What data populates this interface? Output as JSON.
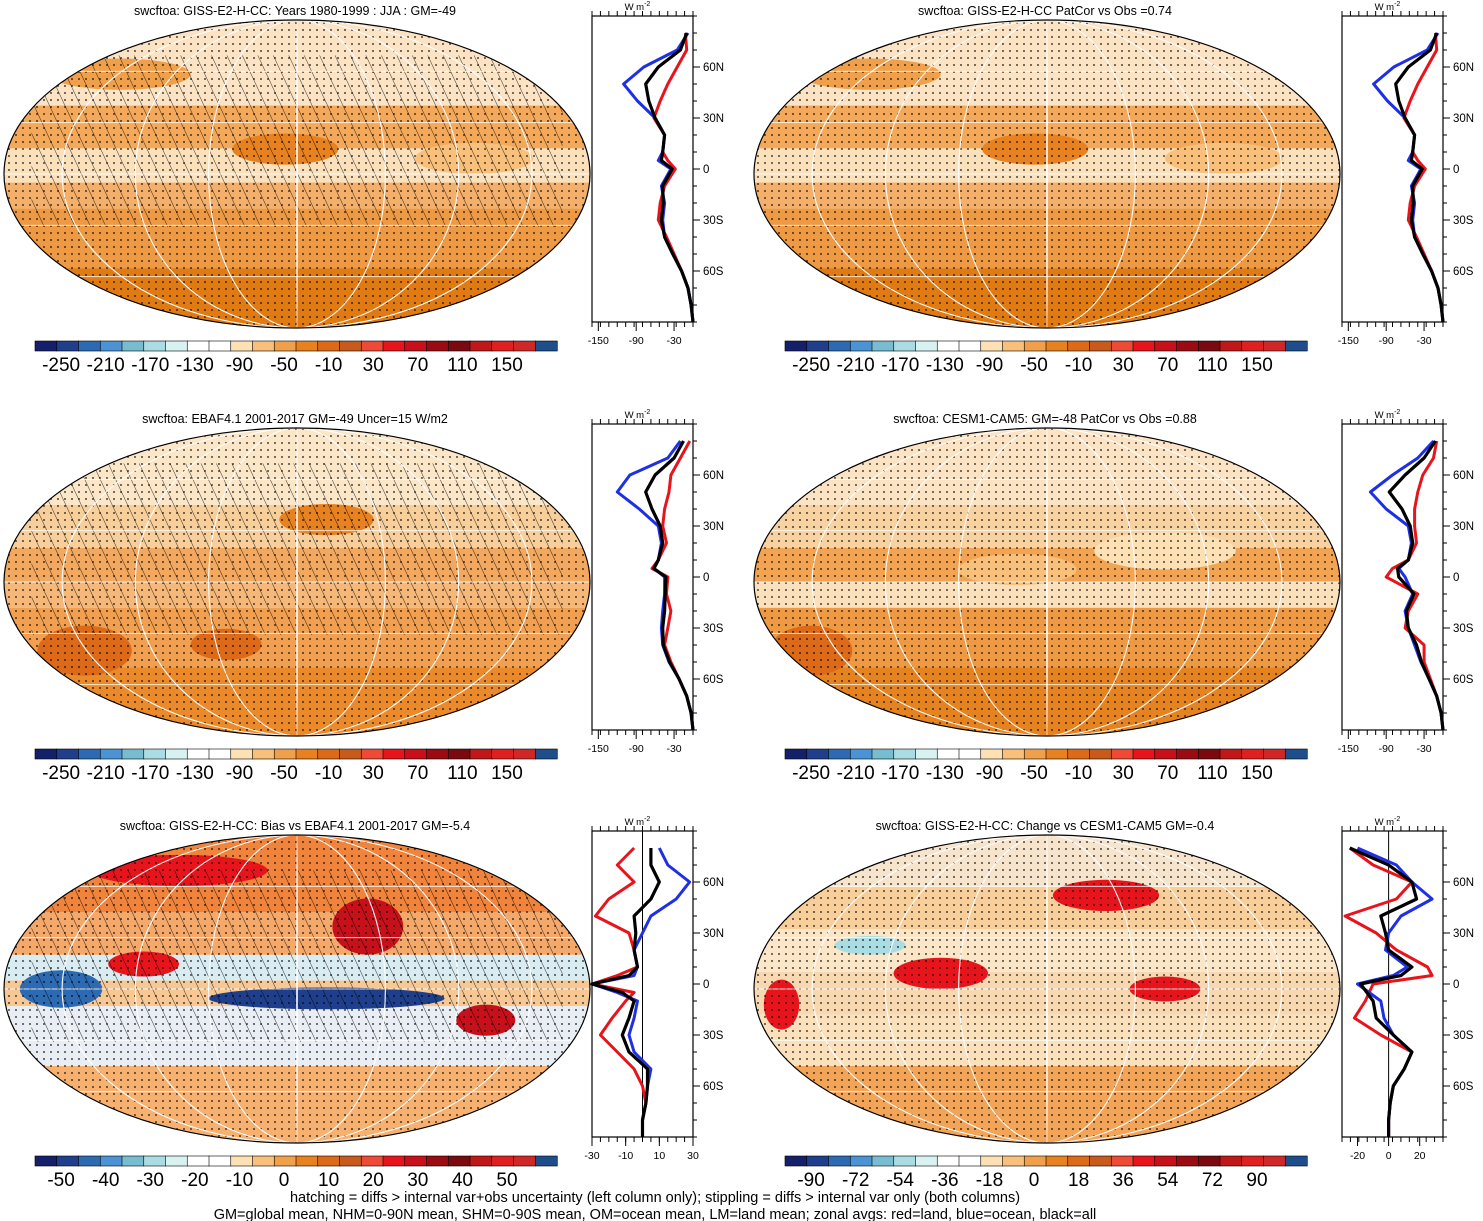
{
  "figure": {
    "footnotes": [
      "hatching = diffs > internal var+obs uncertainty (left column only); stippling = diffs > internal var only (both columns)",
      "GM=global mean, NHM=0-90N mean, SHM=0-90S mean, OM=ocean mean, LM=land mean; zonal avgs: red=land, blue=ocean, black=all"
    ]
  },
  "colors": {
    "land_line": "#e8141c",
    "ocean_line": "#1f2fe6",
    "all_line": "#000000"
  },
  "colorbars": {
    "abs": {
      "labels": [
        "-250",
        "-210",
        "-170",
        "-130",
        "-90",
        "-50",
        "-10",
        "30",
        "70",
        "110",
        "150"
      ],
      "colors": [
        "#15206b",
        "#1f3f8c",
        "#2c6ab3",
        "#4a93d4",
        "#78bcd0",
        "#a9dce3",
        "#d8f2f2",
        "#ffffff",
        "#ffffff",
        "#fde0b4",
        "#f8c07a",
        "#f0a04a",
        "#e8811f",
        "#dc6a18",
        "#c85a1c",
        "#ee4a36",
        "#e8141c",
        "#c8101a",
        "#9a0c12",
        "#7a0a10",
        "#c01818",
        "#e02020",
        "#d02828",
        "#1e4d8c"
      ]
    },
    "bias": {
      "labels": [
        "-50",
        "-40",
        "-30",
        "-20",
        "-10",
        "0",
        "10",
        "20",
        "30",
        "40",
        "50"
      ],
      "colors": [
        "#15206b",
        "#1f3f8c",
        "#2c6ab3",
        "#4a93d4",
        "#78bcd0",
        "#a9dce3",
        "#d8f2f2",
        "#ffffff",
        "#ffffff",
        "#fde0b4",
        "#f8c07a",
        "#f0a04a",
        "#e8811f",
        "#dc6a18",
        "#c85a1c",
        "#ee4a36",
        "#e8141c",
        "#c8101a",
        "#9a0c12",
        "#7a0a10",
        "#c01818",
        "#e02020",
        "#d02828",
        "#1e4d8c"
      ]
    },
    "change": {
      "labels": [
        "-90",
        "-72",
        "-54",
        "-36",
        "-18",
        "0",
        "18",
        "36",
        "54",
        "72",
        "90"
      ],
      "colors": [
        "#15206b",
        "#1f3f8c",
        "#2c6ab3",
        "#4a93d4",
        "#78bcd0",
        "#a9dce3",
        "#d8f2f2",
        "#ffffff",
        "#ffffff",
        "#fde0b4",
        "#f8c07a",
        "#f0a04a",
        "#e8811f",
        "#dc6a18",
        "#c85a1c",
        "#ee4a36",
        "#e8141c",
        "#c8101a",
        "#9a0c12",
        "#7a0a10",
        "#c01818",
        "#e02020",
        "#d02828",
        "#1e4d8c"
      ]
    }
  },
  "chart_data": [
    {
      "type": "heatmap",
      "title": "swcftoa: GISS-E2-H-CC: Years 1980-1999 : JJA : GM=-49",
      "colorbar": "abs",
      "map_style": "model",
      "hatched": true,
      "zonal": {
        "unit": "W m",
        "unit_sup": "-2",
        "xticks": [
          "-150",
          "-90",
          "-30"
        ],
        "xrange": [
          -160,
          0
        ],
        "yticks": [
          "60N",
          "30N",
          "0",
          "30S",
          "60S"
        ],
        "yrange": [
          -90,
          90
        ],
        "lat": [
          -90,
          -80,
          -70,
          -60,
          -50,
          -40,
          -30,
          -20,
          -10,
          0,
          5,
          10,
          20,
          30,
          40,
          50,
          60,
          70,
          80
        ],
        "land": [
          0,
          -3,
          -8,
          -18,
          -30,
          -42,
          -55,
          -52,
          -45,
          -28,
          -40,
          -48,
          -45,
          -62,
          -52,
          -40,
          -25,
          -10,
          -12
        ],
        "ocean": [
          0,
          -3,
          -8,
          -18,
          -32,
          -45,
          -48,
          -45,
          -50,
          -35,
          -55,
          -48,
          -45,
          -60,
          -88,
          -110,
          -78,
          -25,
          -8
        ],
        "all": [
          0,
          -3,
          -8,
          -18,
          -32,
          -45,
          -50,
          -47,
          -48,
          -33,
          -50,
          -48,
          -45,
          -60,
          -70,
          -75,
          -55,
          -20,
          -10
        ]
      }
    },
    {
      "type": "heatmap",
      "title": "swcftoa: GISS-E2-H-CC PatCor vs Obs =0.74",
      "colorbar": "abs",
      "map_style": "model",
      "hatched": false,
      "zonal": {
        "unit": "W m",
        "unit_sup": "-2",
        "xticks": [
          "-150",
          "-90",
          "-30"
        ],
        "xrange": [
          -160,
          0
        ],
        "yticks": [
          "60N",
          "30N",
          "0",
          "30S",
          "60S"
        ],
        "yrange": [
          -90,
          90
        ],
        "lat": [
          -90,
          -80,
          -70,
          -60,
          -50,
          -40,
          -30,
          -20,
          -10,
          0,
          5,
          10,
          20,
          30,
          40,
          50,
          60,
          70,
          80
        ],
        "land": [
          0,
          -3,
          -8,
          -18,
          -30,
          -42,
          -55,
          -52,
          -45,
          -28,
          -40,
          -48,
          -45,
          -62,
          -52,
          -40,
          -25,
          -10,
          -12
        ],
        "ocean": [
          0,
          -3,
          -8,
          -18,
          -32,
          -45,
          -48,
          -45,
          -50,
          -35,
          -55,
          -48,
          -45,
          -60,
          -88,
          -110,
          -78,
          -25,
          -8
        ],
        "all": [
          0,
          -3,
          -8,
          -18,
          -32,
          -45,
          -50,
          -47,
          -48,
          -33,
          -50,
          -48,
          -45,
          -60,
          -70,
          -75,
          -55,
          -20,
          -10
        ]
      }
    },
    {
      "type": "heatmap",
      "title": "swcftoa: EBAF4.1 2001-2017 GM=-49 Uncer=15 W/m2",
      "colorbar": "abs",
      "map_style": "obs",
      "hatched": true,
      "zonal": {
        "unit": "W m",
        "unit_sup": "-2",
        "xticks": [
          "-150",
          "-90",
          "-30"
        ],
        "xrange": [
          -160,
          0
        ],
        "yticks": [
          "60N",
          "30N",
          "0",
          "30S",
          "60S"
        ],
        "yrange": [
          -90,
          90
        ],
        "lat": [
          -90,
          -80,
          -70,
          -60,
          -50,
          -40,
          -30,
          -20,
          -10,
          0,
          5,
          10,
          20,
          30,
          40,
          50,
          60,
          70,
          80
        ],
        "land": [
          0,
          -3,
          -10,
          -22,
          -35,
          -45,
          -40,
          -35,
          -42,
          -40,
          -65,
          -55,
          -42,
          -48,
          -45,
          -38,
          -35,
          -20,
          -5
        ],
        "ocean": [
          0,
          -3,
          -10,
          -22,
          -38,
          -48,
          -50,
          -48,
          -45,
          -45,
          -62,
          -55,
          -50,
          -55,
          -85,
          -120,
          -100,
          -40,
          -20
        ],
        "all": [
          0,
          -3,
          -10,
          -22,
          -37,
          -47,
          -48,
          -45,
          -44,
          -43,
          -62,
          -55,
          -48,
          -52,
          -65,
          -75,
          -60,
          -30,
          -15
        ]
      }
    },
    {
      "type": "heatmap",
      "title": "swcftoa: CESM1-CAM5: GM=-48 PatCor vs Obs =0.88",
      "colorbar": "abs",
      "map_style": "cesm",
      "hatched": false,
      "zonal": {
        "unit": "W m",
        "unit_sup": "-2",
        "xticks": [
          "-150",
          "-90",
          "-30"
        ],
        "xrange": [
          -160,
          0
        ],
        "yticks": [
          "60N",
          "30N",
          "0",
          "30S",
          "60S"
        ],
        "yrange": [
          -90,
          90
        ],
        "lat": [
          -90,
          -80,
          -70,
          -60,
          -50,
          -40,
          -30,
          -20,
          -10,
          0,
          5,
          10,
          20,
          30,
          40,
          50,
          60,
          70,
          80
        ],
        "land": [
          0,
          -3,
          -10,
          -20,
          -30,
          -30,
          -60,
          -55,
          -40,
          -90,
          -80,
          -55,
          -42,
          -45,
          -45,
          -40,
          -32,
          -15,
          -10
        ],
        "ocean": [
          0,
          -3,
          -10,
          -22,
          -35,
          -45,
          -55,
          -60,
          -48,
          -60,
          -70,
          -55,
          -50,
          -55,
          -90,
          -115,
          -80,
          -40,
          -15
        ],
        "all": [
          0,
          -3,
          -10,
          -22,
          -34,
          -42,
          -55,
          -58,
          -46,
          -70,
          -72,
          -55,
          -48,
          -52,
          -65,
          -85,
          -60,
          -30,
          -12
        ]
      }
    },
    {
      "type": "heatmap",
      "title": "swcftoa: GISS-E2-H-CC: Bias vs EBAF4.1 2001-2017 GM=-5.4",
      "colorbar": "bias",
      "map_style": "bias",
      "hatched": true,
      "zonal": {
        "unit": "W m",
        "unit_sup": "-2",
        "xticks": [
          "-30",
          "-10",
          "10",
          "30"
        ],
        "xrange": [
          -30,
          30
        ],
        "yticks": [
          "60N",
          "30N",
          "0",
          "30S",
          "60S"
        ],
        "yrange": [
          -90,
          90
        ],
        "lat": [
          -90,
          -80,
          -70,
          -60,
          -50,
          -40,
          -30,
          -20,
          -10,
          -5,
          0,
          5,
          10,
          20,
          30,
          40,
          50,
          60,
          70,
          80
        ],
        "land": [
          0,
          0,
          2,
          0,
          -5,
          -15,
          -25,
          -18,
          -10,
          -5,
          -30,
          -15,
          -3,
          -5,
          -8,
          -28,
          -20,
          -5,
          -15,
          -5
        ],
        "ocean": [
          0,
          0,
          2,
          3,
          5,
          -5,
          -8,
          -5,
          -3,
          -15,
          -30,
          -5,
          -3,
          -5,
          0,
          5,
          20,
          28,
          15,
          10
        ],
        "all": [
          0,
          0,
          2,
          3,
          3,
          -8,
          -12,
          -8,
          -5,
          -12,
          -30,
          -8,
          -3,
          -5,
          -4,
          -5,
          5,
          10,
          5,
          5
        ]
      }
    },
    {
      "type": "heatmap",
      "title": "swcftoa: GISS-E2-H-CC: Change vs CESM1-CAM5 GM=-0.4",
      "colorbar": "change",
      "map_style": "change",
      "hatched": false,
      "zonal": {
        "unit": "W m",
        "unit_sup": "-2",
        "xticks": [
          "-20",
          "0",
          "20"
        ],
        "xrange": [
          -30,
          35
        ],
        "yticks": [
          "60N",
          "30N",
          "0",
          "30S",
          "60S"
        ],
        "yrange": [
          -90,
          90
        ],
        "lat": [
          -90,
          -80,
          -70,
          -60,
          -50,
          -40,
          -30,
          -20,
          -10,
          0,
          5,
          10,
          20,
          30,
          40,
          50,
          60,
          70,
          80
        ],
        "land": [
          0,
          0,
          1,
          3,
          10,
          15,
          -5,
          -22,
          -15,
          -10,
          28,
          25,
          5,
          -8,
          -28,
          5,
          15,
          -10,
          -25
        ],
        "ocean": [
          0,
          0,
          1,
          3,
          10,
          15,
          3,
          -3,
          -5,
          -20,
          3,
          12,
          -2,
          0,
          8,
          28,
          15,
          5,
          -20
        ],
        "all": [
          0,
          0,
          1,
          3,
          10,
          15,
          3,
          -8,
          -10,
          -18,
          8,
          15,
          0,
          -2,
          -5,
          18,
          15,
          0,
          -25
        ]
      }
    }
  ]
}
